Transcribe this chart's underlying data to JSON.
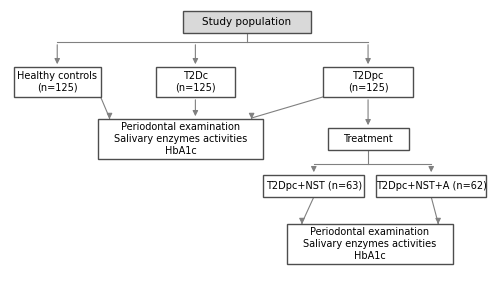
{
  "title": "Study population",
  "box_healthy": "Healthy controls\n(n=125)",
  "box_t2dc": "T2Dc\n(n=125)",
  "box_t2dpc": "T2Dpc\n(n=125)",
  "box_exam1": "Periodontal examination\nSalivary enzymes activities\nHbA1c",
  "box_treatment": "Treatment",
  "box_nst": "T2Dpc+NST (n=63)",
  "box_nsta": "T2Dpc+NST+A (n=62)",
  "box_exam2": "Periodontal examination\nSalivary enzymes activities\nHbA1c",
  "bg_color": "#ffffff",
  "box_fill_top": "#d9d9d9",
  "box_fill_other": "#ffffff",
  "box_edge_color": "#4d4d4d",
  "text_color": "#000000",
  "arrow_color": "#808080",
  "line_color": "#808080",
  "font_size": 7.0
}
